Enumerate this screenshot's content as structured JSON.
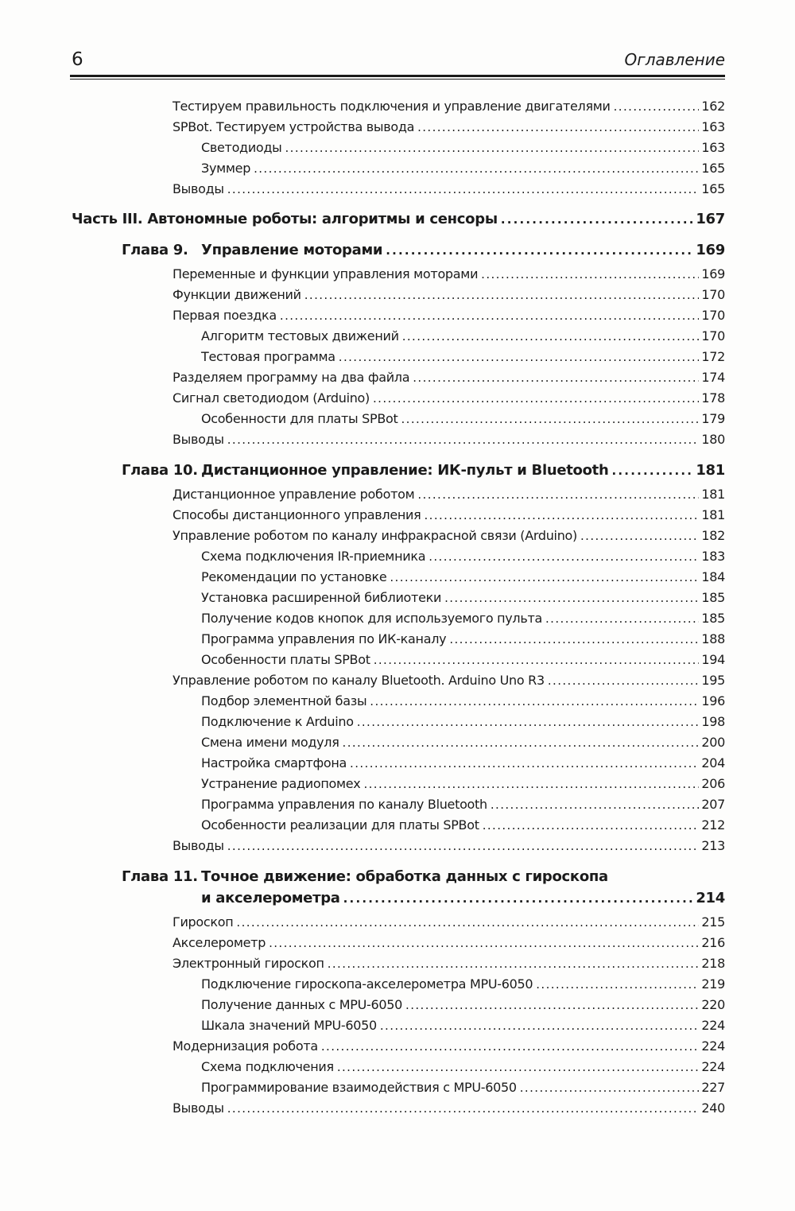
{
  "header": {
    "page_number": "6",
    "title": "Оглавление"
  },
  "colors": {
    "text": "#1b1b1b",
    "rule": "#1a1a1a",
    "background": "#fdfdfc"
  },
  "toc": {
    "entries": [
      {
        "type": "l1",
        "text": "Тестируем правильность подключения и управление двигателями",
        "page": "162"
      },
      {
        "type": "l1",
        "text": "SPBot. Тестируем устройства вывода",
        "page": "163"
      },
      {
        "type": "l2",
        "text": "Светодиоды",
        "page": "163"
      },
      {
        "type": "l2",
        "text": "Зуммер",
        "page": "165"
      },
      {
        "type": "l1",
        "text": "Выводы",
        "page": "165"
      },
      {
        "type": "part",
        "text": "Часть III. Автономные роботы: алгоритмы и сенсоры",
        "page": "167"
      },
      {
        "type": "chapter",
        "label": "Глава 9.",
        "text": "Управление моторами",
        "page": "169"
      },
      {
        "type": "l1",
        "text": "Переменные и функции управления моторами",
        "page": "169"
      },
      {
        "type": "l1",
        "text": "Функции движений",
        "page": "170"
      },
      {
        "type": "l1",
        "text": "Первая поездка",
        "page": "170"
      },
      {
        "type": "l2",
        "text": "Алгоритм тестовых движений",
        "page": "170"
      },
      {
        "type": "l2",
        "text": "Тестовая программа",
        "page": "172"
      },
      {
        "type": "l1",
        "text": "Разделяем программу на два файла",
        "page": "174"
      },
      {
        "type": "l1",
        "text": "Сигнал светодиодом (Arduino)",
        "page": "178"
      },
      {
        "type": "l2",
        "text": "Особенности для платы SPBot",
        "page": "179"
      },
      {
        "type": "l1",
        "text": "Выводы",
        "page": "180"
      },
      {
        "type": "chapter",
        "label": "Глава 10.",
        "text": "Дистанционное управление: ИК-пульт и Bluetooth",
        "page": "181"
      },
      {
        "type": "l1",
        "text": "Дистанционное управление роботом",
        "page": "181"
      },
      {
        "type": "l1",
        "text": "Способы дистанционного управления",
        "page": "181"
      },
      {
        "type": "l1",
        "text": "Управление роботом по каналу инфракрасной связи (Arduino)",
        "page": "182"
      },
      {
        "type": "l2",
        "text": "Схема подключения IR-приемника",
        "page": "183"
      },
      {
        "type": "l2",
        "text": "Рекомендации по установке",
        "page": "184"
      },
      {
        "type": "l2",
        "text": "Установка расширенной библиотеки",
        "page": "185"
      },
      {
        "type": "l2",
        "text": "Получение кодов кнопок для используемого пульта",
        "page": "185"
      },
      {
        "type": "l2",
        "text": "Программа управления по ИК-каналу",
        "page": "188"
      },
      {
        "type": "l2",
        "text": "Особенности платы SPBot",
        "page": "194"
      },
      {
        "type": "l1",
        "text": "Управление роботом по каналу Bluetooth. Arduino Uno R3",
        "page": "195"
      },
      {
        "type": "l2",
        "text": "Подбор элементной базы",
        "page": "196"
      },
      {
        "type": "l2",
        "text": "Подключение к Arduino",
        "page": "198"
      },
      {
        "type": "l2",
        "text": "Смена имени модуля",
        "page": "200"
      },
      {
        "type": "l2",
        "text": "Настройка смартфона",
        "page": "204"
      },
      {
        "type": "l2",
        "text": "Устранение радиопомех",
        "page": "206"
      },
      {
        "type": "l2",
        "text": "Программа управления по каналу Bluetooth",
        "page": "207"
      },
      {
        "type": "l2",
        "text": "Особенности реализации для платы SPBot",
        "page": "212"
      },
      {
        "type": "l1",
        "text": "Выводы",
        "page": "213"
      },
      {
        "type": "chapter",
        "label": "Глава 11.",
        "text": "Точное движение: обработка данных с гироскопа",
        "page": ""
      },
      {
        "type": "chapter-cont",
        "text": "и акселерометра",
        "page": "214"
      },
      {
        "type": "l1",
        "text": "Гироскоп",
        "page": "215"
      },
      {
        "type": "l1",
        "text": "Акселерометр",
        "page": "216"
      },
      {
        "type": "l1",
        "text": "Электронный гироскоп",
        "page": "218"
      },
      {
        "type": "l2",
        "text": "Подключение гироскопа-акселерометра MPU-6050",
        "page": "219"
      },
      {
        "type": "l2",
        "text": "Получение данных с MPU-6050",
        "page": "220"
      },
      {
        "type": "l2",
        "text": "Шкала значений MPU-6050",
        "page": "224"
      },
      {
        "type": "l1",
        "text": "Модернизация робота",
        "page": "224"
      },
      {
        "type": "l2",
        "text": "Схема подключения",
        "page": "224"
      },
      {
        "type": "l2",
        "text": "Программирование взаимодействия с MPU-6050",
        "page": "227"
      },
      {
        "type": "l1",
        "text": "Выводы",
        "page": "240"
      }
    ]
  }
}
